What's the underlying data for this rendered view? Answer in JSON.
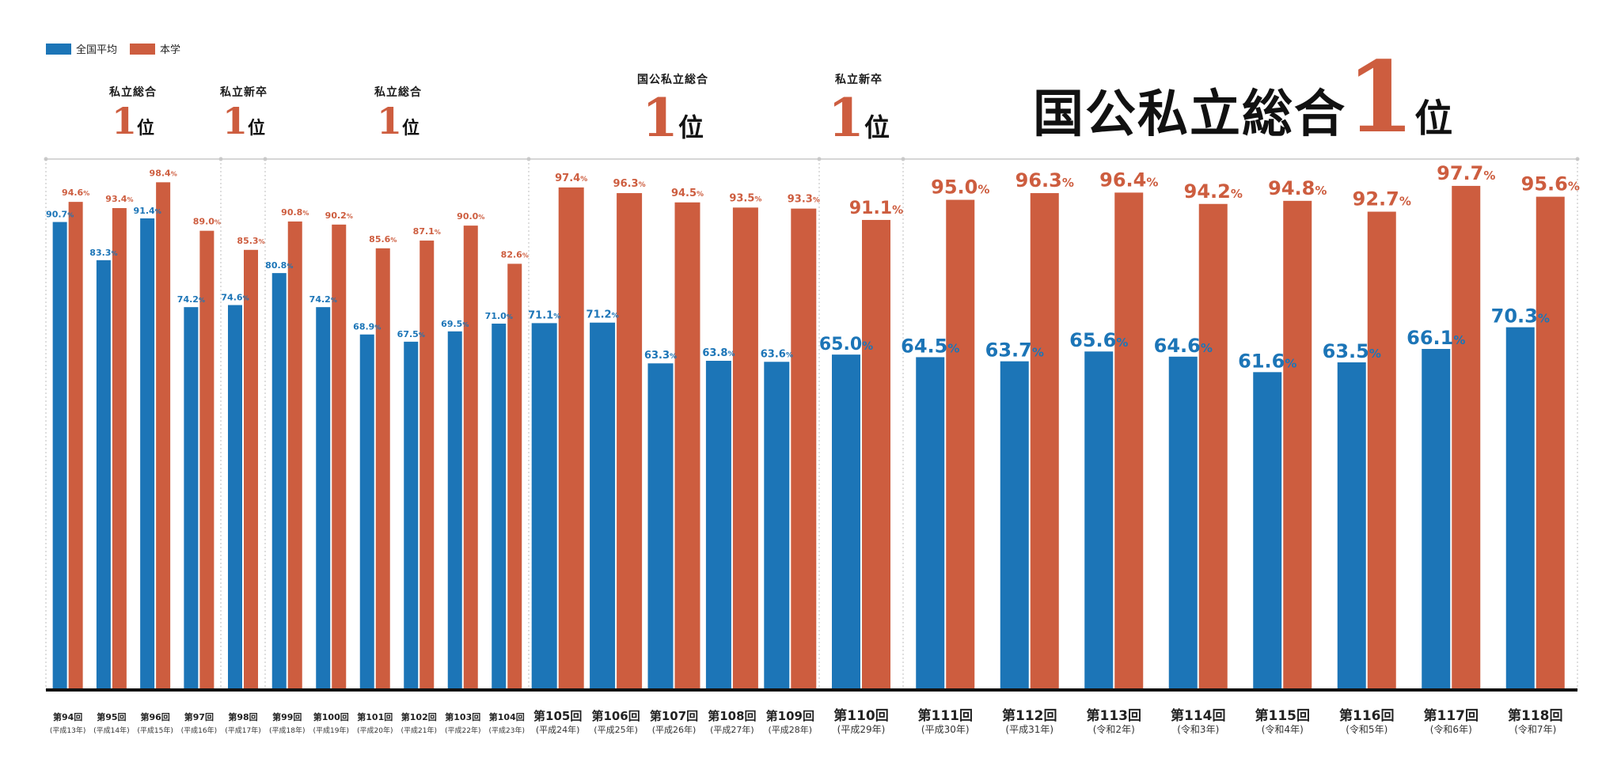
{
  "legend": {
    "national_label": "全国平均",
    "school_label": "本学",
    "national_color": "#1c75b7",
    "school_color": "#cd5d3f"
  },
  "rankings": [
    {
      "label": "私立総合",
      "num": "1",
      "pos": "位"
    },
    {
      "label": "私立新卒",
      "num": "1",
      "pos": "位"
    },
    {
      "label": "私立総合",
      "num": "1",
      "pos": "位"
    },
    {
      "label": "国公私立総合",
      "num": "1",
      "pos": "位"
    },
    {
      "label": "私立新卒",
      "num": "1",
      "pos": "位"
    }
  ],
  "headline": {
    "label": "国公私立総合",
    "num": "1",
    "pos": "位"
  },
  "chart_data": {
    "type": "bar",
    "ylim": [
      0,
      100
    ],
    "grid": false,
    "legend_position": "top-left",
    "series": [
      {
        "name": "全国平均",
        "color": "#1c75b7",
        "values": [
          90.7,
          83.3,
          91.4,
          74.2,
          74.6,
          80.8,
          74.2,
          68.9,
          67.5,
          69.5,
          71.0,
          71.1,
          71.2,
          63.3,
          63.8,
          63.6,
          65.0,
          64.5,
          63.7,
          65.6,
          64.6,
          61.6,
          63.5,
          66.1,
          70.3
        ]
      },
      {
        "name": "本学",
        "color": "#cd5d3f",
        "values": [
          94.6,
          93.4,
          98.4,
          89.0,
          85.3,
          90.8,
          90.2,
          85.6,
          87.1,
          90.0,
          82.6,
          97.4,
          96.3,
          94.5,
          93.5,
          93.3,
          91.1,
          95.0,
          96.3,
          96.4,
          94.2,
          94.8,
          92.7,
          97.7,
          95.6
        ]
      }
    ],
    "categories": [
      {
        "round": "第94回",
        "era": "(平成13年)"
      },
      {
        "round": "第95回",
        "era": "(平成14年)"
      },
      {
        "round": "第96回",
        "era": "(平成15年)"
      },
      {
        "round": "第97回",
        "era": "(平成16年)"
      },
      {
        "round": "第98回",
        "era": "(平成17年)"
      },
      {
        "round": "第99回",
        "era": "(平成18年)"
      },
      {
        "round": "第100回",
        "era": "(平成19年)"
      },
      {
        "round": "第101回",
        "era": "(平成20年)"
      },
      {
        "round": "第102回",
        "era": "(平成21年)"
      },
      {
        "round": "第103回",
        "era": "(平成22年)"
      },
      {
        "round": "第104回",
        "era": "(平成23年)"
      },
      {
        "round": "第105回",
        "era": "(平成24年)"
      },
      {
        "round": "第106回",
        "era": "(平成25年)"
      },
      {
        "round": "第107回",
        "era": "(平成26年)"
      },
      {
        "round": "第108回",
        "era": "(平成27年)"
      },
      {
        "round": "第109回",
        "era": "(平成28年)"
      },
      {
        "round": "第110回",
        "era": "(平成29年)"
      },
      {
        "round": "第111回",
        "era": "(平成30年)"
      },
      {
        "round": "第112回",
        "era": "(平成31年)"
      },
      {
        "round": "第113回",
        "era": "(令和2年)"
      },
      {
        "round": "第114回",
        "era": "(令和3年)"
      },
      {
        "round": "第115回",
        "era": "(令和4年)"
      },
      {
        "round": "第116回",
        "era": "(令和5年)"
      },
      {
        "round": "第117回",
        "era": "(令和6年)"
      },
      {
        "round": "第118回",
        "era": "(令和7年)"
      }
    ]
  }
}
